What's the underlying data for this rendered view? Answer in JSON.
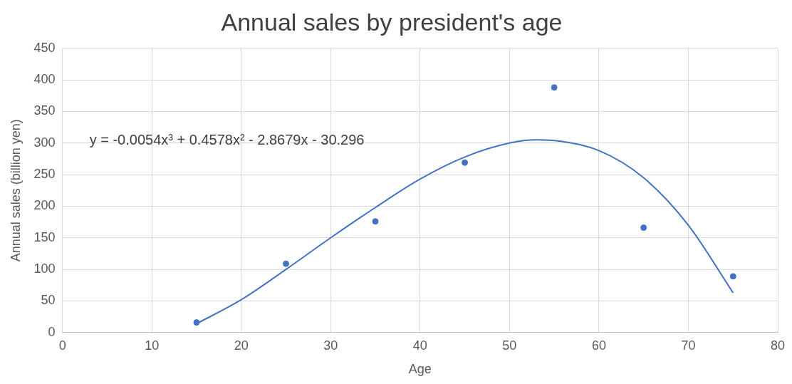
{
  "chart_data": {
    "type": "scatter",
    "title": "Annual sales by president's age",
    "xlabel": "Age",
    "ylabel": "Annual sales (billion yen)",
    "xlim": [
      0,
      80
    ],
    "xticks": [
      0,
      10,
      20,
      30,
      40,
      50,
      60,
      70,
      80
    ],
    "ylim": [
      0,
      450
    ],
    "yticks": [
      0,
      50,
      100,
      150,
      200,
      250,
      300,
      350,
      400,
      450
    ],
    "grid": true,
    "legend": false,
    "marker": "circle",
    "annotations": [
      "y = -0.0054x³ + 0.4578x² - 2.8679x - 30.296"
    ],
    "series": [
      {
        "color": "#4472c4",
        "x": [
          15,
          25,
          35,
          45,
          55,
          65,
          75
        ],
        "values": [
          16,
          109,
          176,
          269,
          388,
          166,
          89
        ]
      },
      {
        "type": "line",
        "color": "#4472c4",
        "marker": "none",
        "x": [
          15,
          20,
          25,
          30,
          35,
          40,
          45,
          50,
          53,
          55,
          60,
          65,
          70,
          75
        ],
        "values": [
          14,
          52,
          100,
          150,
          198,
          243,
          278,
          300,
          305,
          304,
          288,
          245,
          170,
          63
        ]
      }
    ]
  }
}
